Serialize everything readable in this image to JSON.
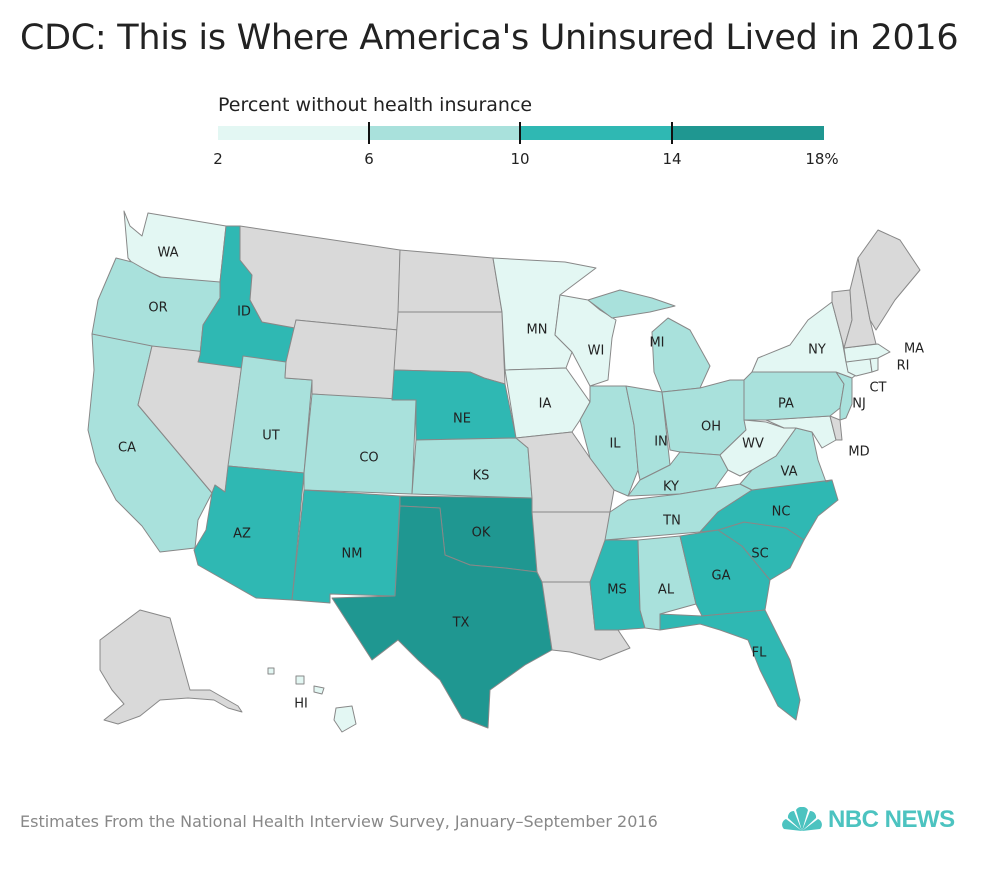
{
  "title": "CDC: This is Where America's Uninsured Lived in 2016",
  "legend": {
    "title": "Percent without health insurance",
    "bins": [
      {
        "label": "2",
        "color": "#e3f7f3"
      },
      {
        "label": "6",
        "color": "#a9e1dc"
      },
      {
        "label": "10",
        "color": "#2fb8b3"
      },
      {
        "label": "14",
        "color": "#1f9791"
      }
    ],
    "end_label": "18%",
    "no_data_color": "#d9d9d9"
  },
  "states": {
    "WA": {
      "label": "WA",
      "bin": 0
    },
    "OR": {
      "label": "OR",
      "bin": 1
    },
    "CA": {
      "label": "CA",
      "bin": 1
    },
    "ID": {
      "label": "ID",
      "bin": 2
    },
    "NV": {
      "label": "",
      "bin": null
    },
    "UT": {
      "label": "UT",
      "bin": 1
    },
    "AZ": {
      "label": "AZ",
      "bin": 2
    },
    "MT": {
      "label": "",
      "bin": null
    },
    "WY": {
      "label": "",
      "bin": null
    },
    "CO": {
      "label": "CO",
      "bin": 1
    },
    "NM": {
      "label": "NM",
      "bin": 2
    },
    "ND": {
      "label": "",
      "bin": null
    },
    "SD": {
      "label": "",
      "bin": null
    },
    "NE": {
      "label": "NE",
      "bin": 2
    },
    "KS": {
      "label": "KS",
      "bin": 1
    },
    "OK": {
      "label": "OK",
      "bin": 3
    },
    "TX": {
      "label": "TX",
      "bin": 3
    },
    "MN": {
      "label": "MN",
      "bin": 0
    },
    "IA": {
      "label": "IA",
      "bin": 0
    },
    "MO": {
      "label": "",
      "bin": null
    },
    "AR": {
      "label": "",
      "bin": null
    },
    "LA": {
      "label": "",
      "bin": null
    },
    "WI": {
      "label": "WI",
      "bin": 0
    },
    "IL": {
      "label": "IL",
      "bin": 1
    },
    "MI": {
      "label": "MI",
      "bin": 1
    },
    "IN": {
      "label": "IN",
      "bin": 1
    },
    "OH": {
      "label": "OH",
      "bin": 1
    },
    "KY": {
      "label": "KY",
      "bin": 1
    },
    "TN": {
      "label": "TN",
      "bin": 1
    },
    "MS": {
      "label": "MS",
      "bin": 2
    },
    "AL": {
      "label": "AL",
      "bin": 1
    },
    "GA": {
      "label": "GA",
      "bin": 2
    },
    "FL": {
      "label": "FL",
      "bin": 2
    },
    "SC": {
      "label": "SC",
      "bin": 2
    },
    "NC": {
      "label": "NC",
      "bin": 2
    },
    "VA": {
      "label": "VA",
      "bin": 1
    },
    "WV": {
      "label": "WV",
      "bin": 0
    },
    "MD": {
      "label": "MD",
      "bin": 0
    },
    "DE": {
      "label": "",
      "bin": null
    },
    "PA": {
      "label": "PA",
      "bin": 1
    },
    "NJ": {
      "label": "NJ",
      "bin": 1
    },
    "NY": {
      "label": "NY",
      "bin": 0
    },
    "CT": {
      "label": "CT",
      "bin": 0
    },
    "RI": {
      "label": "RI",
      "bin": 0
    },
    "MA": {
      "label": "MA",
      "bin": 0
    },
    "VT": {
      "label": "",
      "bin": null
    },
    "NH": {
      "label": "",
      "bin": null
    },
    "ME": {
      "label": "",
      "bin": null
    },
    "AK": {
      "label": "",
      "bin": null
    },
    "HI": {
      "label": "HI",
      "bin": 0
    }
  },
  "footer": "Estimates From the National Health Interview Survey, January–September 2016",
  "brand": {
    "text": "NBC NEWS",
    "icon": "peacock-icon",
    "color": "#4cc3c0"
  }
}
